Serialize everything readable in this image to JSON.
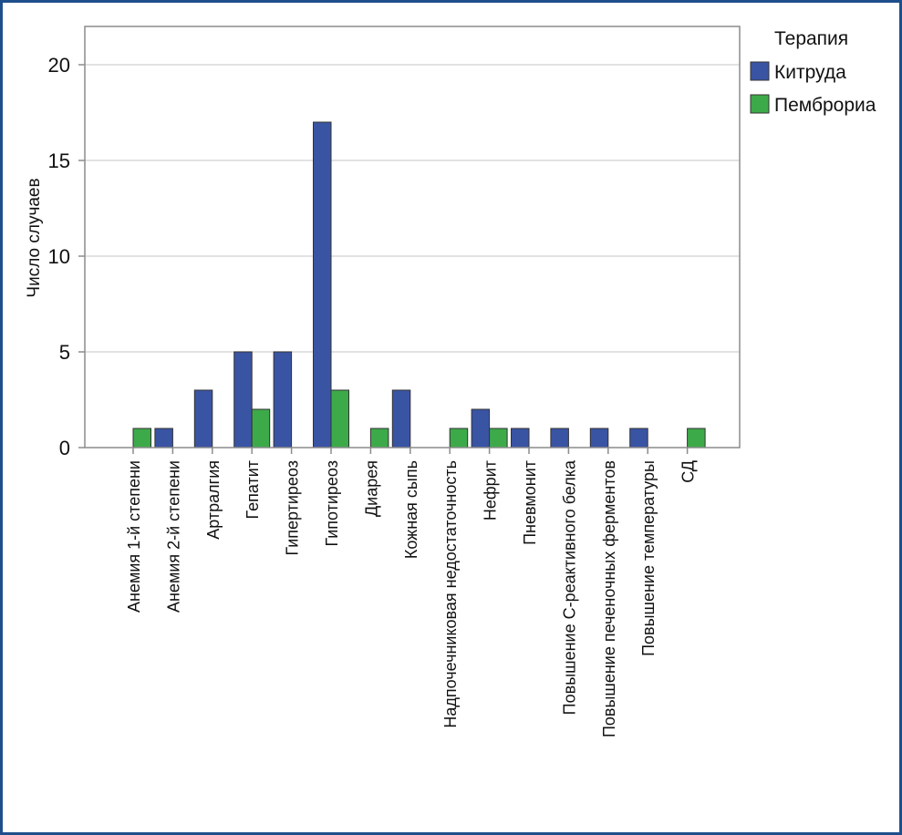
{
  "chart_data": {
    "type": "bar",
    "title": "",
    "xlabel": "",
    "ylabel": "Число случаев",
    "ylim": [
      0,
      22
    ],
    "yticks": [
      0,
      5,
      10,
      15,
      20
    ],
    "grid": true,
    "legend": {
      "title": "Терапия",
      "placement": "outside-top-right"
    },
    "categories": [
      "Анемия 1-й степени",
      "Анемия 2-й степени",
      "Артралгия",
      "Гепатит",
      "Гипертиреоз",
      "Гипотиреоз",
      "Диарея",
      "Кожная сыпь",
      "Надпочечниковая недостаточность",
      "Нефрит",
      "Пневмонит",
      "Повышение С-реактивного белка",
      "Повышение печеночных ферментов",
      "Повышение температуры",
      "СД"
    ],
    "series": [
      {
        "name": "Китруда",
        "color": "#3a54a4",
        "values": [
          0,
          1,
          3,
          5,
          5,
          17,
          0,
          3,
          0,
          2,
          1,
          1,
          1,
          1,
          0
        ]
      },
      {
        "name": "Пемброриа",
        "color": "#3daa4a",
        "values": [
          1,
          0,
          0,
          2,
          0,
          3,
          1,
          0,
          1,
          1,
          0,
          0,
          0,
          0,
          1
        ]
      }
    ]
  }
}
